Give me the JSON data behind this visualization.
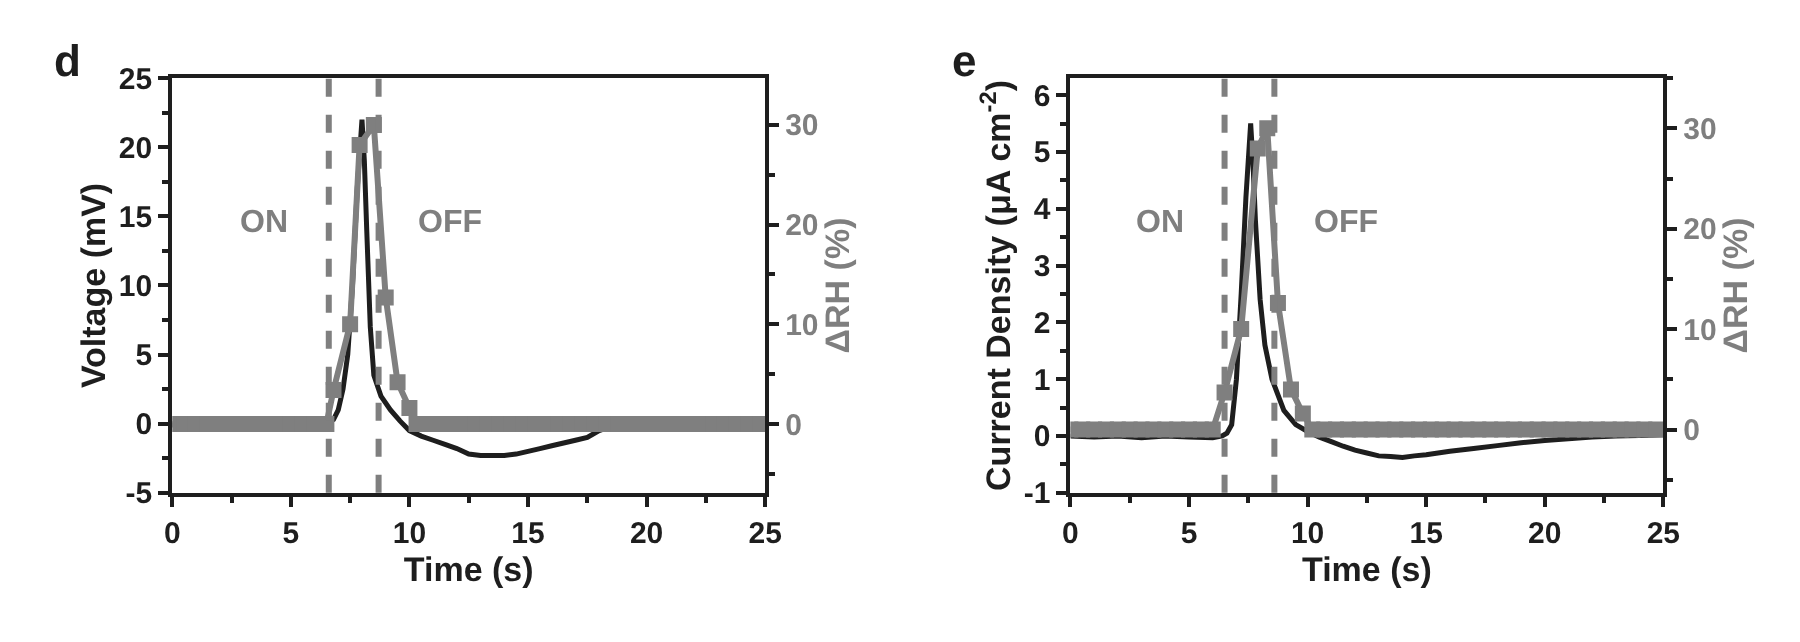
{
  "chart_data": [
    {
      "type": "line",
      "title": "d",
      "xlabel": "Time (s)",
      "ylabel": "Voltage (mV)",
      "y2label": "ΔRH (%)",
      "xlim": [
        0,
        25
      ],
      "xticks": [
        0,
        5,
        10,
        15,
        20,
        25
      ],
      "ylim": [
        -5,
        25
      ],
      "yticks": [
        -5,
        0,
        5,
        10,
        15,
        20,
        25
      ],
      "y2lim": [
        -6.9,
        34.7
      ],
      "y2ticks": [
        0,
        10,
        20,
        30
      ],
      "line_style": "solid",
      "series": [
        {
          "color": "#1e1e1e",
          "marker": "none",
          "x": [
            0,
            1,
            2,
            3,
            4,
            5,
            6,
            6.6,
            6.8,
            7.0,
            7.2,
            7.4,
            7.6,
            7.8,
            8.0,
            8.1,
            8.2,
            8.35,
            8.5,
            8.8,
            9.2,
            9.6,
            10,
            10.5,
            11,
            11.5,
            12,
            12.5,
            13,
            13.5,
            14,
            14.5,
            15,
            15.5,
            16,
            16.5,
            17,
            17.5,
            18,
            18.5,
            19,
            19.5,
            20,
            21,
            22,
            23,
            23.5,
            24,
            25
          ],
          "values": [
            -0.1,
            -0.1,
            0,
            -0.1,
            0,
            -0.1,
            0,
            0.1,
            0.3,
            1,
            2.5,
            5,
            10,
            17,
            22,
            19,
            14,
            7,
            3.5,
            2,
            1,
            0.2,
            -0.5,
            -0.9,
            -1.2,
            -1.5,
            -1.8,
            -2.2,
            -2.3,
            -2.3,
            -2.3,
            -2.2,
            -2.0,
            -1.8,
            -1.6,
            -1.4,
            -1.2,
            -1.0,
            -0.5,
            -0.2,
            -0.3,
            -0.3,
            -0.2,
            -0.1,
            0,
            0.2,
            0.2,
            0,
            0
          ]
        },
        {
          "color": "#7f7f7f",
          "axis": "y2",
          "marker": "square",
          "x": [
            0,
            0.5,
            1,
            1.5,
            2,
            2.5,
            3,
            3.5,
            4,
            4.5,
            5,
            5.5,
            6,
            6.5,
            6.8,
            7.5,
            7.9,
            8.5,
            9.0,
            9.5,
            10.0,
            10.3,
            10.8,
            11.3,
            11.8,
            12.3,
            12.8,
            13.3,
            13.8,
            14.3,
            14.8,
            15.3,
            15.8,
            16.3,
            16.8,
            17.3,
            17.8,
            18.3,
            18.8,
            19.3,
            19.8,
            20.3,
            20.8,
            21.3,
            21.8,
            22.3,
            22.8,
            23.3,
            23.8,
            24.3,
            24.8
          ],
          "values": [
            0,
            0,
            0,
            0,
            0,
            0,
            0,
            0,
            0,
            0,
            0,
            0,
            0,
            0,
            3.4,
            10,
            28,
            30,
            12.7,
            4.2,
            1.6,
            0,
            0,
            0,
            0,
            0,
            0,
            0,
            0,
            0,
            0,
            0,
            0,
            0,
            0,
            0,
            0,
            0,
            0,
            0,
            0,
            0,
            0,
            0,
            0,
            0,
            0,
            0,
            0,
            0,
            0
          ]
        }
      ],
      "ref_lines": [
        {
          "axis": "x",
          "value": 6.6,
          "label": "ON",
          "color": "#7f7f7f",
          "line_style": "dashed"
        },
        {
          "axis": "x",
          "value": 8.7,
          "label": "OFF",
          "color": "#7f7f7f",
          "line_style": "dashed"
        }
      ]
    },
    {
      "type": "line",
      "title": "e",
      "xlabel": "Time (s)",
      "ylabel": "Current Density (μA cm$^{-2}$)",
      "y2label": "ΔRH (%)",
      "xlim": [
        0,
        25
      ],
      "xticks": [
        0,
        5,
        10,
        15,
        20,
        25
      ],
      "ylim": [
        -1,
        6.3
      ],
      "yticks": [
        -1,
        0,
        1,
        2,
        3,
        4,
        5,
        6
      ],
      "y2lim": [
        -6.3,
        35
      ],
      "y2ticks": [
        0,
        10,
        20,
        30
      ],
      "line_style": "solid",
      "series": [
        {
          "color": "#1e1e1e",
          "marker": "none",
          "x": [
            0,
            1,
            2,
            3,
            4,
            5,
            6,
            6.4,
            6.6,
            6.8,
            7.0,
            7.2,
            7.4,
            7.6,
            7.7,
            7.8,
            8.0,
            8.2,
            8.5,
            9.0,
            9.5,
            10,
            10.5,
            11,
            11.5,
            12,
            12.5,
            13,
            13.5,
            14,
            14.5,
            15,
            16,
            17,
            18,
            19,
            20,
            21,
            22,
            23,
            24,
            25
          ],
          "values": [
            0,
            -0.02,
            0,
            -0.03,
            0,
            -0.02,
            -0.03,
            0,
            0.05,
            0.2,
            1,
            2.5,
            4.2,
            5.5,
            4.8,
            3.8,
            2.4,
            1.6,
            1,
            0.45,
            0.2,
            0.08,
            -0.02,
            -0.1,
            -0.18,
            -0.25,
            -0.3,
            -0.35,
            -0.36,
            -0.38,
            -0.35,
            -0.33,
            -0.27,
            -0.22,
            -0.17,
            -0.12,
            -0.08,
            -0.05,
            -0.02,
            0,
            0.01,
            0.02
          ]
        },
        {
          "color": "#7f7f7f",
          "axis": "y2",
          "marker": "square",
          "x": [
            0,
            0.5,
            1,
            1.5,
            2,
            2.5,
            3,
            3.5,
            4,
            4.5,
            5,
            5.5,
            6,
            6.5,
            7.2,
            7.9,
            8.3,
            8.75,
            9.3,
            9.8,
            10.2,
            10.7,
            11.2,
            11.7,
            12.2,
            12.7,
            13.2,
            13.7,
            14.2,
            14.7,
            15.2,
            15.7,
            16.2,
            16.7,
            17.2,
            17.7,
            18.2,
            18.7,
            19.2,
            19.7,
            20.2,
            20.7,
            21.2,
            21.7,
            22.2,
            22.7,
            23.2,
            23.7,
            24.2,
            24.7
          ],
          "values": [
            0,
            0,
            0,
            0,
            0,
            0,
            0,
            0,
            0,
            0,
            0,
            0,
            0,
            3.7,
            10,
            28,
            30,
            12.6,
            4.0,
            1.6,
            0,
            0,
            0,
            0,
            0,
            0,
            0,
            0,
            0,
            0,
            0,
            0,
            0,
            0,
            0,
            0,
            0,
            0,
            0,
            0,
            0,
            0,
            0,
            0,
            0,
            0,
            0,
            0,
            0,
            0
          ]
        }
      ],
      "ref_lines": [
        {
          "axis": "x",
          "value": 6.5,
          "label": "ON",
          "color": "#7f7f7f",
          "line_style": "dashed"
        },
        {
          "axis": "x",
          "value": 8.6,
          "label": "OFF",
          "color": "#7f7f7f",
          "line_style": "dashed"
        }
      ]
    }
  ]
}
